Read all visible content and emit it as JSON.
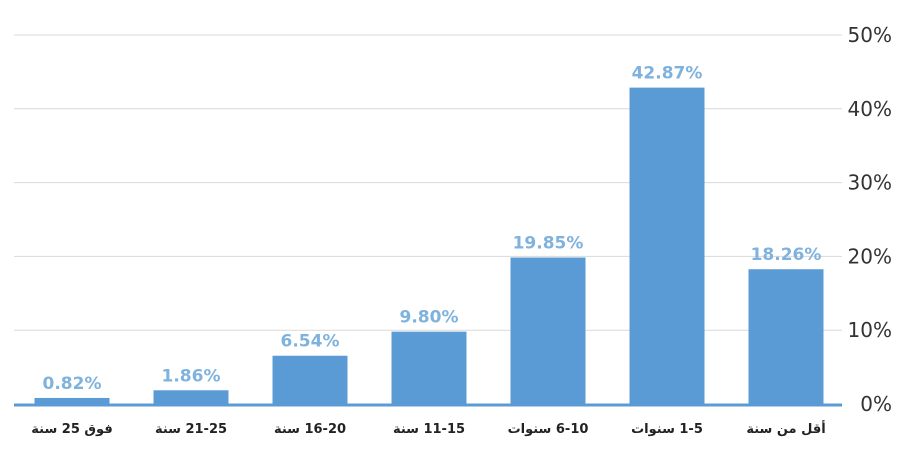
{
  "chart_data": {
    "type": "bar",
    "categories": [
      "أقل من سنة",
      "1-5 سنوات",
      "6-10 سنوات",
      "11-15 سنة",
      "16-20 سنة",
      "21-25 سنة",
      "فوق 25 سنة"
    ],
    "values": [
      18.26,
      42.87,
      19.85,
      9.8,
      6.54,
      1.86,
      0.82
    ],
    "data_labels": [
      "18.26%",
      "42.87%",
      "19.85%",
      "9.80%",
      "6.54%",
      "1.86%",
      "0.82%"
    ],
    "yticks": [
      "0%",
      "10%",
      "20%",
      "30%",
      "40%",
      "50%"
    ],
    "ylim": [
      0,
      50
    ],
    "y_axis_side": "right",
    "category_order": "right-to-left",
    "grid": true,
    "title": "",
    "xlabel": "",
    "ylabel": "",
    "colors": {
      "bar": "#5b9bd5",
      "data_label": "#7fb2dd",
      "grid": "#d9d9d9",
      "baseline": "#5b9bd5"
    }
  }
}
